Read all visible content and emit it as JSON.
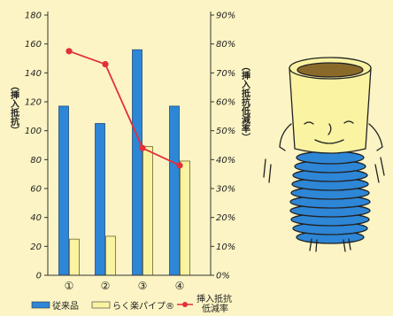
{
  "colors": {
    "background": "#FCF4C4",
    "conventional": "#2E86D6",
    "rakuraku": "#FAF3A2",
    "reduction": "#E0303A",
    "axis": "#333333"
  },
  "chart_data": {
    "type": "bar",
    "categories": [
      "①",
      "②",
      "③",
      "④"
    ],
    "series": [
      {
        "name": "従来品",
        "axis": "left",
        "kind": "bar",
        "values": [
          117,
          105,
          156,
          117
        ]
      },
      {
        "name": "らく楽パイプ®",
        "axis": "left",
        "kind": "bar",
        "values": [
          25,
          27,
          89,
          79
        ]
      },
      {
        "name": "挿入抵抗低減率",
        "axis": "right",
        "kind": "line",
        "values": [
          77.5,
          73,
          44,
          38
        ]
      }
    ],
    "left_axis": {
      "label": "（挿入抵抗）",
      "range": [
        0,
        180
      ],
      "ticks": [
        0,
        20,
        40,
        60,
        80,
        100,
        120,
        140,
        160,
        180
      ]
    },
    "right_axis": {
      "label": "（挿入抵抗低減率）",
      "range": [
        0,
        90
      ],
      "ticks": [
        "0%",
        "10%",
        "20%",
        "30%",
        "40%",
        "50%",
        "60%",
        "70%",
        "80%",
        "90%"
      ]
    },
    "legend": {
      "placement": "bottom"
    },
    "grid": false
  },
  "illustration": {
    "icon": "pipe-mascot-icon"
  }
}
